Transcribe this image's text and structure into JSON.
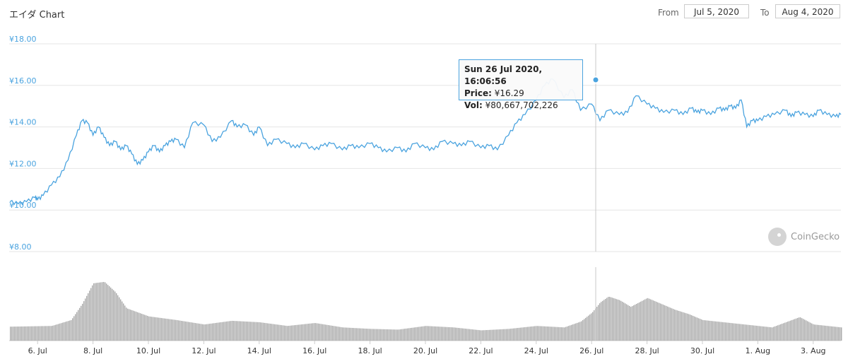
{
  "header": {
    "title": "エイダ Chart",
    "from_label": "From",
    "from_value": "Jul 5, 2020",
    "to_label": "To",
    "to_value": "Aug 4, 2020"
  },
  "tooltip": {
    "date": "Sun 26 Jul 2020, 16:06:56",
    "price_label": "Price:",
    "price_value": "¥16.29",
    "vol_label": "Vol:",
    "vol_value": "¥80,667,702,226"
  },
  "watermark": "CoinGecko",
  "colors": {
    "price_line": "#4aa3df",
    "volume_bars": "#a8a8a8",
    "grid": "#e6e6e6",
    "marker": "#4aa3df"
  },
  "chart_data": [
    {
      "type": "line",
      "title": "エイダ Chart",
      "xlabel": "",
      "ylabel": "",
      "ylim": [
        8,
        18
      ],
      "yticks": [
        "¥18.00",
        "¥16.00",
        "¥14.00",
        "¥12.00",
        "¥10.00",
        "¥8.00"
      ],
      "xticks": [
        "6. Jul",
        "8. Jul",
        "10. Jul",
        "12. Jul",
        "14. Jul",
        "16. Jul",
        "18. Jul",
        "20. Jul",
        "22. Jul",
        "24. Jul",
        "26. Jul",
        "28. Jul",
        "30. Jul",
        "1. Aug",
        "3. Aug"
      ],
      "grid": true,
      "series": [
        {
          "x_days": [
            0,
            0.3,
            0.6,
            0.9,
            1.0,
            1.2,
            1.5,
            1.8,
            2.1,
            2.4,
            2.6,
            2.8,
            3.0,
            3.2,
            3.4,
            3.6,
            3.8,
            4.0,
            4.2,
            4.4,
            4.6,
            4.8,
            5.0,
            5.2,
            5.4,
            5.6,
            5.8,
            6.0,
            6.3,
            6.6,
            7.0,
            7.3,
            7.6,
            8.0,
            8.2,
            8.5,
            8.8,
            9.0,
            9.3,
            9.6,
            10.0,
            10.3,
            10.6,
            11.0,
            11.3,
            11.6,
            12.0,
            12.3,
            12.6,
            13.0,
            13.3,
            13.6,
            14.0,
            14.3,
            14.6,
            15.0,
            15.3,
            15.6,
            16.0,
            16.3,
            16.6,
            17.0,
            17.3,
            17.6,
            18.0,
            18.3,
            18.6,
            19.0,
            19.3,
            19.6,
            20.0,
            20.3,
            20.6,
            21.0,
            21.3,
            21.6,
            22.0,
            22.3,
            22.6,
            23.0,
            23.3,
            23.6,
            24.0,
            24.3,
            24.6,
            24.8,
            25.0,
            25.3,
            25.6,
            25.8,
            26.0,
            26.2,
            26.4,
            26.6,
            26.8,
            27.0,
            27.3,
            27.6,
            28.0,
            28.2,
            28.4,
            28.7,
            29.0,
            29.2,
            29.5,
            29.8,
            30.0
          ],
          "y": [
            10.4,
            10.3,
            10.4,
            10.6,
            10.5,
            10.7,
            11.2,
            11.6,
            12.4,
            13.6,
            14.3,
            14.2,
            13.6,
            14.0,
            13.5,
            13.1,
            13.3,
            12.9,
            13.1,
            12.7,
            12.2,
            12.4,
            12.8,
            13.1,
            12.8,
            13.1,
            13.3,
            13.4,
            13.0,
            14.2,
            14.1,
            13.3,
            13.5,
            14.3,
            14.0,
            14.1,
            13.6,
            14.0,
            13.1,
            13.4,
            13.2,
            13.0,
            13.2,
            12.9,
            13.1,
            13.2,
            12.9,
            13.1,
            13.0,
            13.2,
            13.0,
            12.8,
            13.0,
            12.8,
            13.2,
            13.0,
            12.9,
            13.3,
            13.2,
            13.1,
            13.3,
            13.0,
            13.1,
            12.9,
            13.6,
            14.2,
            14.6,
            15.3,
            16.0,
            16.3,
            15.4,
            15.8,
            14.8,
            15.1,
            14.3,
            14.8,
            14.6,
            14.7,
            15.5,
            15.1,
            14.9,
            14.7,
            14.8,
            14.6,
            14.9,
            14.7,
            14.8,
            14.6,
            14.9,
            14.8,
            15.0,
            14.9,
            15.3,
            14.0,
            14.3,
            14.3,
            14.5,
            14.6,
            14.8,
            14.5,
            14.7,
            14.6,
            14.5,
            14.8,
            14.6,
            14.5,
            14.6
          ]
        }
      ]
    },
    {
      "type": "bar",
      "title": "",
      "xlabel": "",
      "ylabel": "",
      "series": [
        {
          "x_days": [
            0,
            1.5,
            2.2,
            2.6,
            3.0,
            3.4,
            3.8,
            4.2,
            5.0,
            6.0,
            7.0,
            8.0,
            9.0,
            10.0,
            11.0,
            12.0,
            13.0,
            14.0,
            15.0,
            16.0,
            17.0,
            18.0,
            19.0,
            20.0,
            20.6,
            21.0,
            21.3,
            21.6,
            22.0,
            22.4,
            23.0,
            23.5,
            24.0,
            24.5,
            25.0,
            26.0,
            27.0,
            27.5,
            28.0,
            28.5,
            29.0,
            30.0
          ],
          "relative_volume": [
            0.19,
            0.2,
            0.28,
            0.5,
            0.78,
            0.8,
            0.66,
            0.44,
            0.33,
            0.28,
            0.22,
            0.27,
            0.25,
            0.2,
            0.24,
            0.18,
            0.16,
            0.15,
            0.2,
            0.18,
            0.14,
            0.16,
            0.2,
            0.18,
            0.26,
            0.38,
            0.52,
            0.6,
            0.55,
            0.46,
            0.58,
            0.5,
            0.42,
            0.36,
            0.28,
            0.24,
            0.2,
            0.18,
            0.25,
            0.32,
            0.22,
            0.18
          ]
        }
      ]
    }
  ]
}
